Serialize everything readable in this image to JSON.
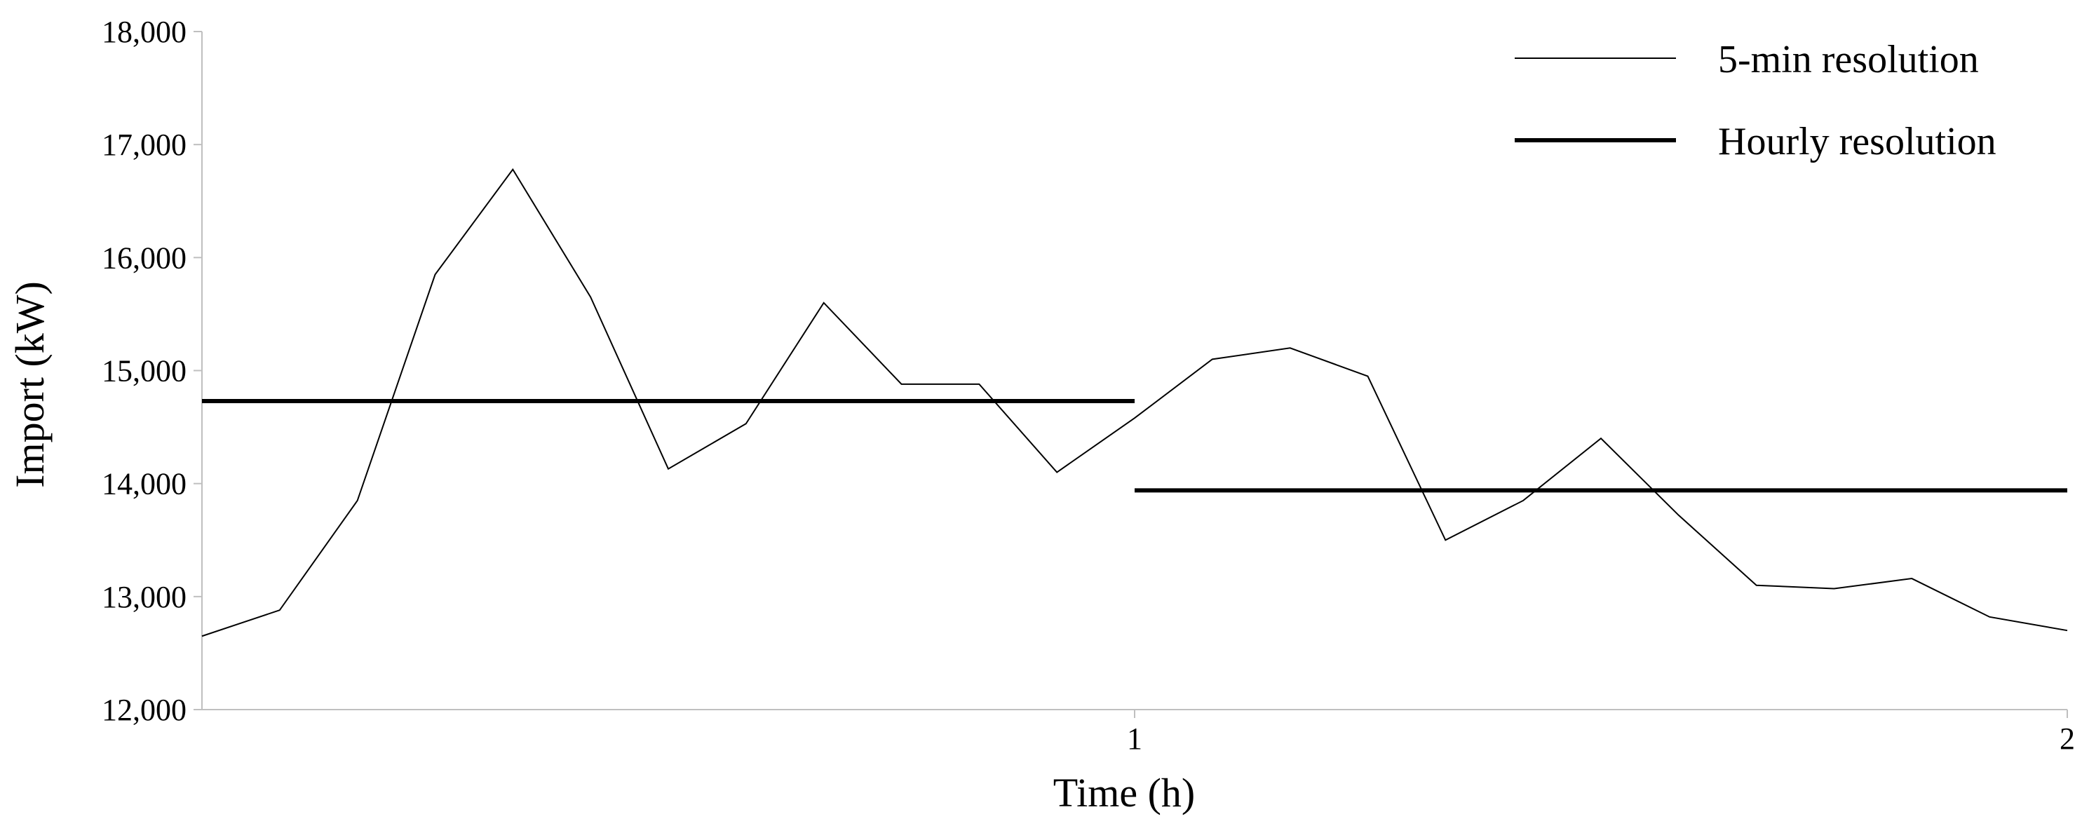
{
  "chart_data": {
    "type": "line",
    "title": "",
    "xlabel": "Time (h)",
    "ylabel": "Import (kW)",
    "xlim": [
      0,
      2
    ],
    "ylim": [
      12000,
      18000
    ],
    "x_ticks": [
      {
        "value": 1,
        "label": "1"
      },
      {
        "value": 2,
        "label": "2"
      }
    ],
    "y_ticks": [
      {
        "value": 12000,
        "label": "12,000"
      },
      {
        "value": 13000,
        "label": "13,000"
      },
      {
        "value": 14000,
        "label": "14,000"
      },
      {
        "value": 15000,
        "label": "15,000"
      },
      {
        "value": 16000,
        "label": "16,000"
      },
      {
        "value": 17000,
        "label": "17,000"
      },
      {
        "value": 18000,
        "label": "18,000"
      }
    ],
    "grid": false,
    "legend_position": "top-right",
    "series": [
      {
        "name": "5-min resolution",
        "style": "thin",
        "color": "#000000",
        "x": [
          0,
          0.0833,
          0.1667,
          0.25,
          0.3333,
          0.4167,
          0.5,
          0.5833,
          0.6667,
          0.75,
          0.8333,
          0.9167,
          1.0,
          1.0833,
          1.1667,
          1.25,
          1.3333,
          1.4167,
          1.5,
          1.5833,
          1.6667,
          1.75,
          1.8333,
          1.9167,
          2.0
        ],
        "y": [
          12650,
          12880,
          13850,
          15850,
          16780,
          15650,
          14130,
          14530,
          15600,
          14880,
          14880,
          14100,
          14580,
          15100,
          15200,
          14950,
          13500,
          13850,
          14400,
          13720,
          13100,
          13070,
          13160,
          12820,
          12700
        ]
      },
      {
        "name": "Hourly resolution",
        "style": "thick",
        "color": "#000000",
        "segments": [
          {
            "x": [
              0,
              1
            ],
            "y": 14730
          },
          {
            "x": [
              1,
              2
            ],
            "y": 13940
          }
        ]
      }
    ]
  }
}
